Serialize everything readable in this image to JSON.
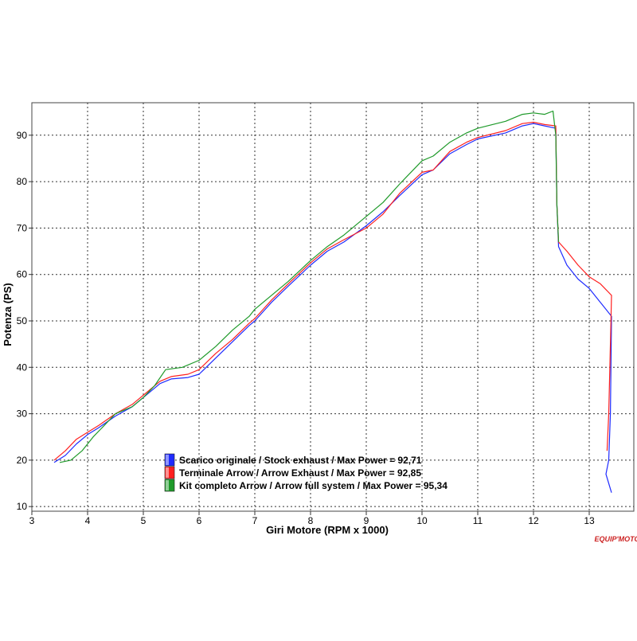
{
  "chart_data": {
    "type": "line",
    "title": "",
    "xlabel": "Giri Motore (RPM x 1000)",
    "ylabel": "Potenza (PS)",
    "xlim": [
      3,
      13.8
    ],
    "ylim": [
      9,
      97
    ],
    "x_ticks": [
      3,
      4,
      5,
      6,
      7,
      8,
      9,
      10,
      11,
      12,
      13
    ],
    "y_ticks": [
      10,
      20,
      30,
      40,
      50,
      60,
      70,
      80,
      90
    ],
    "grid": true,
    "legend_position": "bottom-center",
    "series": [
      {
        "name": "Scarico originale / Stock exhaust / Max Power = 92,71",
        "color": "#1f2bff",
        "points": [
          [
            3.4,
            19.5
          ],
          [
            3.6,
            21
          ],
          [
            3.8,
            23.5
          ],
          [
            4.0,
            25.5
          ],
          [
            4.2,
            27
          ],
          [
            4.5,
            29.5
          ],
          [
            4.8,
            31.5
          ],
          [
            5.0,
            33.5
          ],
          [
            5.3,
            36.5
          ],
          [
            5.5,
            37.5
          ],
          [
            5.8,
            37.8
          ],
          [
            6.0,
            38.5
          ],
          [
            6.3,
            42
          ],
          [
            6.6,
            45.5
          ],
          [
            6.9,
            49
          ],
          [
            7.0,
            50
          ],
          [
            7.3,
            54
          ],
          [
            7.6,
            57.5
          ],
          [
            8.0,
            62
          ],
          [
            8.3,
            65
          ],
          [
            8.6,
            67
          ],
          [
            9.0,
            70.5
          ],
          [
            9.3,
            73.5
          ],
          [
            9.6,
            77
          ],
          [
            10.0,
            81.5
          ],
          [
            10.2,
            82.5
          ],
          [
            10.5,
            86
          ],
          [
            10.8,
            88
          ],
          [
            11.0,
            89.2
          ],
          [
            11.5,
            90.5
          ],
          [
            11.8,
            92
          ],
          [
            12.0,
            92.5
          ],
          [
            12.2,
            92
          ],
          [
            12.4,
            91.5
          ],
          [
            12.42,
            75
          ],
          [
            12.45,
            66
          ],
          [
            12.6,
            62
          ],
          [
            12.8,
            59
          ],
          [
            13.0,
            57
          ],
          [
            13.2,
            54
          ],
          [
            13.4,
            51
          ],
          [
            13.38,
            30
          ],
          [
            13.35,
            20
          ],
          [
            13.3,
            17
          ],
          [
            13.4,
            13
          ]
        ]
      },
      {
        "name": "Terminale Arrow / Arrow Exhaust / Max Power = 92,85",
        "color": "#ff2020",
        "points": [
          [
            3.4,
            20
          ],
          [
            3.6,
            22
          ],
          [
            3.8,
            24.5
          ],
          [
            4.0,
            26
          ],
          [
            4.2,
            27.5
          ],
          [
            4.5,
            30
          ],
          [
            4.8,
            32
          ],
          [
            5.0,
            34
          ],
          [
            5.3,
            37
          ],
          [
            5.5,
            38
          ],
          [
            5.8,
            38.5
          ],
          [
            6.0,
            39.5
          ],
          [
            6.3,
            43
          ],
          [
            6.6,
            46
          ],
          [
            6.9,
            49.5
          ],
          [
            7.0,
            50.5
          ],
          [
            7.3,
            54.5
          ],
          [
            7.6,
            58
          ],
          [
            8.0,
            62.5
          ],
          [
            8.3,
            65.5
          ],
          [
            8.6,
            67.5
          ],
          [
            9.0,
            70
          ],
          [
            9.3,
            73
          ],
          [
            9.6,
            77.5
          ],
          [
            10.0,
            82
          ],
          [
            10.2,
            82.5
          ],
          [
            10.5,
            86.5
          ],
          [
            10.8,
            88.5
          ],
          [
            11.0,
            89.5
          ],
          [
            11.5,
            91
          ],
          [
            11.8,
            92.5
          ],
          [
            12.0,
            92.8
          ],
          [
            12.2,
            92.3
          ],
          [
            12.4,
            92
          ],
          [
            12.42,
            75
          ],
          [
            12.45,
            67
          ],
          [
            12.6,
            65
          ],
          [
            12.8,
            62
          ],
          [
            13.0,
            59.5
          ],
          [
            13.2,
            58
          ],
          [
            13.4,
            55.5
          ],
          [
            13.38,
            45
          ],
          [
            13.35,
            30
          ],
          [
            13.32,
            22
          ]
        ]
      },
      {
        "name": "Kit completo Arrow / Arrow full system / Max Power = 95,34",
        "color": "#1f9a2a",
        "points": [
          [
            3.5,
            19.5
          ],
          [
            3.7,
            20
          ],
          [
            3.9,
            22
          ],
          [
            4.1,
            25
          ],
          [
            4.3,
            27.5
          ],
          [
            4.5,
            30
          ],
          [
            4.8,
            31.5
          ],
          [
            5.0,
            33.5
          ],
          [
            5.2,
            36
          ],
          [
            5.4,
            39.5
          ],
          [
            5.7,
            40
          ],
          [
            6.0,
            41.5
          ],
          [
            6.3,
            44.5
          ],
          [
            6.6,
            48
          ],
          [
            6.9,
            51
          ],
          [
            7.0,
            52.5
          ],
          [
            7.3,
            55.5
          ],
          [
            7.6,
            58.5
          ],
          [
            8.0,
            63
          ],
          [
            8.3,
            66
          ],
          [
            8.6,
            68.5
          ],
          [
            9.0,
            72.5
          ],
          [
            9.3,
            75.5
          ],
          [
            9.6,
            79.5
          ],
          [
            10.0,
            84.5
          ],
          [
            10.2,
            85.5
          ],
          [
            10.5,
            88.5
          ],
          [
            10.8,
            90.5
          ],
          [
            11.0,
            91.5
          ],
          [
            11.5,
            93
          ],
          [
            11.8,
            94.5
          ],
          [
            12.0,
            94.8
          ],
          [
            12.2,
            94.5
          ],
          [
            12.35,
            95.2
          ],
          [
            12.4,
            90
          ],
          [
            12.42,
            75
          ],
          [
            12.45,
            67
          ]
        ]
      }
    ]
  },
  "watermark": "EQUIP'MOTO"
}
